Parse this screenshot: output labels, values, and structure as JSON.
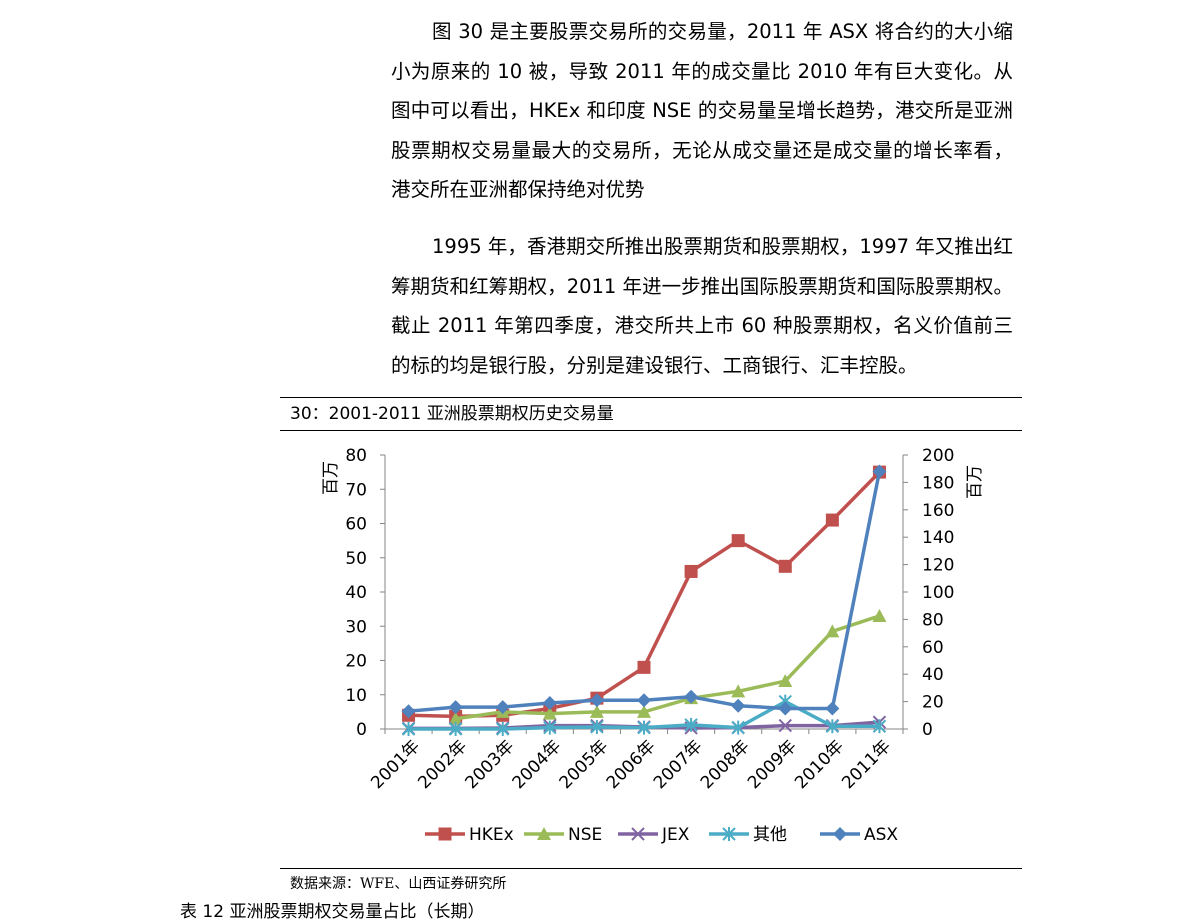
{
  "paragraphs": [
    "图 30 是主要股票交易所的交易量，2011 年 ASX 将合约的大小缩小为原来的 10 被，导致 2011 年的成交量比 2010 年有巨大变化。从图中可以看出，HKEx 和印度 NSE 的交易量呈增长趋势，港交所是亚洲股票期权交易量最大的交易所，无论从成交量还是成交量的增长率看，港交所在亚洲都保持绝对优势",
    "1995 年，香港期交所推出股票期货和股票期权，1997 年又推出红筹期货和红筹期权，2011 年进一步推出国际股票期货和国际股票期权。截止 2011 年第四季度，港交所共上市 60 种股票期权，名义价值前三的标的均是银行股，分别是建设银行、工商银行、汇丰控股。"
  ],
  "source": "数据来源：WFE、山西证券研究所",
  "next_title": "表 12  亚洲股票期权交易量占比（长期）",
  "chart_data": {
    "type": "line",
    "title": "30：2001-2011 亚洲股票期权历史交易量",
    "ylabel": "百万",
    "y2label": "百万",
    "ylim": [
      0,
      80
    ],
    "y2lim": [
      0,
      200
    ],
    "yticks": [
      0,
      10,
      20,
      30,
      40,
      50,
      60,
      70,
      80
    ],
    "y2ticks": [
      0,
      20,
      40,
      60,
      80,
      100,
      120,
      140,
      160,
      180,
      200
    ],
    "categories": [
      "2001年",
      "2002年",
      "2003年",
      "2004年",
      "2005年",
      "2006年",
      "2007年",
      "2008年",
      "2009年",
      "2010年",
      "2011年"
    ],
    "legend_position": "bottom",
    "series": [
      {
        "name": "HKEx",
        "axis": "left",
        "marker": "square",
        "color": "#c0504d",
        "values": [
          4,
          3.7,
          4,
          6,
          9,
          18,
          46,
          55,
          47.5,
          61,
          75
        ]
      },
      {
        "name": "NSE",
        "axis": "left",
        "marker": "triangle",
        "color": "#9bbb59",
        "values": [
          null,
          3,
          5,
          4.5,
          5,
          5,
          9,
          11,
          14,
          28.5,
          33
        ]
      },
      {
        "name": "JEX",
        "axis": "left",
        "marker": "x",
        "color": "#8064a2",
        "values": [
          0.2,
          0.2,
          0.3,
          1,
          1,
          0.6,
          0.3,
          0.4,
          1,
          1,
          2
        ]
      },
      {
        "name": "其他",
        "axis": "right",
        "marker": "star",
        "color": "#4bacc6",
        "values": [
          0,
          0,
          0,
          1,
          1.5,
          1,
          3,
          1,
          20,
          2,
          2
        ]
      },
      {
        "name": "ASX",
        "axis": "right",
        "marker": "diamond",
        "color": "#4f81bd",
        "values": [
          13,
          16,
          16,
          19,
          21,
          21,
          23.5,
          17,
          15,
          15,
          188
        ]
      }
    ]
  }
}
